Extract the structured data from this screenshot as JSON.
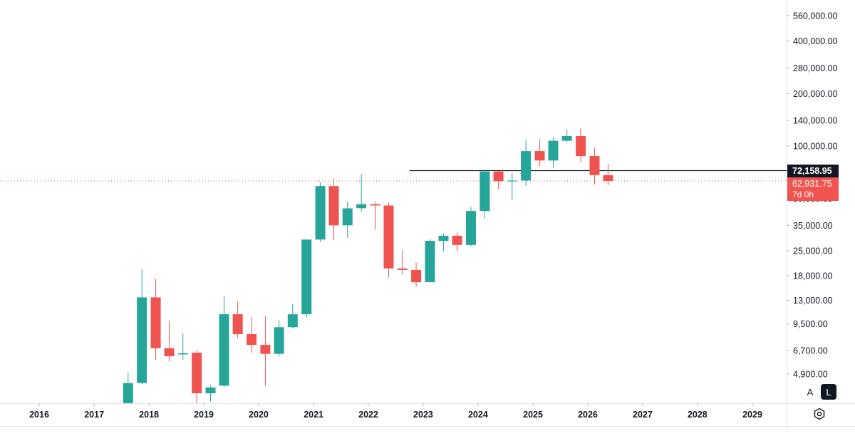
{
  "chart_data": {
    "type": "candlestick",
    "interval": "1 quarter",
    "y_scale": "log",
    "ylim": [
      4400,
      600000
    ],
    "xlim": [
      "2015-05-01",
      "2030-02-01"
    ],
    "colors": {
      "up": "#26a69a",
      "down": "#ef5350",
      "hline": "#131722",
      "axis_text": "#131722"
    },
    "y_ticks": [
      {
        "value": 560000,
        "label": "560,000.00"
      },
      {
        "value": 400000,
        "label": "400,000.00"
      },
      {
        "value": 280000,
        "label": "280,000.00"
      },
      {
        "value": 200000,
        "label": "200,000.00"
      },
      {
        "value": 140000,
        "label": "140,000.00"
      },
      {
        "value": 100000,
        "label": "100,000.00"
      },
      {
        "value": 50000,
        "label": "50,000.00"
      },
      {
        "value": 35000,
        "label": "35,000.00"
      },
      {
        "value": 25000,
        "label": "25,000.00"
      },
      {
        "value": 18000,
        "label": "18,000.00"
      },
      {
        "value": 13000,
        "label": "13,000.00"
      },
      {
        "value": 9500,
        "label": "9,500.00"
      },
      {
        "value": 6700,
        "label": "6,700.00"
      },
      {
        "value": 4900,
        "label": "4,900.00"
      }
    ],
    "x_ticks": [
      {
        "date": "2016-01-01",
        "label": "2016"
      },
      {
        "date": "2017-01-01",
        "label": "2017"
      },
      {
        "date": "2018-01-01",
        "label": "2018"
      },
      {
        "date": "2019-01-01",
        "label": "2019"
      },
      {
        "date": "2020-01-01",
        "label": "2020"
      },
      {
        "date": "2021-01-01",
        "label": "2021"
      },
      {
        "date": "2022-01-01",
        "label": "2022"
      },
      {
        "date": "2023-01-01",
        "label": "2023"
      },
      {
        "date": "2024-01-01",
        "label": "2024"
      },
      {
        "date": "2025-01-01",
        "label": "2025"
      },
      {
        "date": "2026-01-01",
        "label": "2026"
      },
      {
        "date": "2027-01-01",
        "label": "2027"
      },
      {
        "date": "2028-01-01",
        "label": "2028"
      },
      {
        "date": "2029-01-01",
        "label": "2029"
      }
    ],
    "candles": [
      {
        "date": "2017-07-01",
        "open": 2450,
        "high": 5000,
        "low": 1800,
        "close": 4350
      },
      {
        "date": "2017-10-01",
        "open": 4350,
        "high": 19700,
        "low": 4300,
        "close": 13500
      },
      {
        "date": "2018-01-01",
        "open": 13500,
        "high": 17200,
        "low": 5900,
        "close": 6900
      },
      {
        "date": "2018-04-01",
        "open": 6900,
        "high": 9900,
        "low": 5800,
        "close": 6200
      },
      {
        "date": "2018-07-01",
        "open": 6350,
        "high": 8400,
        "low": 5900,
        "close": 6450
      },
      {
        "date": "2018-10-01",
        "open": 6500,
        "high": 6700,
        "low": 3200,
        "close": 3800
      },
      {
        "date": "2019-01-01",
        "open": 3800,
        "high": 4200,
        "low": 3400,
        "close": 4100
      },
      {
        "date": "2019-04-01",
        "open": 4200,
        "high": 13800,
        "low": 4100,
        "close": 10800
      },
      {
        "date": "2019-07-01",
        "open": 10800,
        "high": 12900,
        "low": 7900,
        "close": 8300
      },
      {
        "date": "2019-10-01",
        "open": 8300,
        "high": 10400,
        "low": 6500,
        "close": 7200
      },
      {
        "date": "2020-01-01",
        "open": 7200,
        "high": 10500,
        "low": 4200,
        "close": 6400
      },
      {
        "date": "2020-04-01",
        "open": 6400,
        "high": 10000,
        "low": 6200,
        "close": 9100
      },
      {
        "date": "2020-07-01",
        "open": 9100,
        "high": 12400,
        "low": 9000,
        "close": 10800
      },
      {
        "date": "2020-10-01",
        "open": 10800,
        "high": 29000,
        "low": 10400,
        "close": 29000
      },
      {
        "date": "2021-01-01",
        "open": 29000,
        "high": 61800,
        "low": 28100,
        "close": 58800
      },
      {
        "date": "2021-04-01",
        "open": 58800,
        "high": 64800,
        "low": 28800,
        "close": 35000
      },
      {
        "date": "2021-07-01",
        "open": 35000,
        "high": 48000,
        "low": 29600,
        "close": 43800
      },
      {
        "date": "2021-10-01",
        "open": 43900,
        "high": 69000,
        "low": 42000,
        "close": 46300
      },
      {
        "date": "2022-01-01",
        "open": 46300,
        "high": 48000,
        "low": 33000,
        "close": 45500
      },
      {
        "date": "2022-04-01",
        "open": 45500,
        "high": 47400,
        "low": 17600,
        "close": 19800
      },
      {
        "date": "2022-07-01",
        "open": 19800,
        "high": 25200,
        "low": 18200,
        "close": 19400
      },
      {
        "date": "2022-10-01",
        "open": 19400,
        "high": 21400,
        "low": 15500,
        "close": 16500
      },
      {
        "date": "2023-01-01",
        "open": 16500,
        "high": 29200,
        "low": 16500,
        "close": 28500
      },
      {
        "date": "2023-04-01",
        "open": 28500,
        "high": 31400,
        "low": 24800,
        "close": 30500
      },
      {
        "date": "2023-07-01",
        "open": 30500,
        "high": 31800,
        "low": 24900,
        "close": 27000
      },
      {
        "date": "2023-10-01",
        "open": 27000,
        "high": 44700,
        "low": 26500,
        "close": 42300
      },
      {
        "date": "2024-01-01",
        "open": 42300,
        "high": 73800,
        "low": 38500,
        "close": 71300
      },
      {
        "date": "2024-04-01",
        "open": 71300,
        "high": 72000,
        "low": 56500,
        "close": 62700
      },
      {
        "date": "2024-07-01",
        "open": 62700,
        "high": 70000,
        "low": 49000,
        "close": 63300
      },
      {
        "date": "2024-10-01",
        "open": 63300,
        "high": 108300,
        "low": 58900,
        "close": 93400
      },
      {
        "date": "2025-01-01",
        "open": 93400,
        "high": 109600,
        "low": 76600,
        "close": 82500
      },
      {
        "date": "2025-04-01",
        "open": 82500,
        "high": 111900,
        "low": 74400,
        "close": 107100
      },
      {
        "date": "2025-07-01",
        "open": 107100,
        "high": 124400,
        "low": 105100,
        "close": 114000
      },
      {
        "date": "2025-10-01",
        "open": 114000,
        "high": 126200,
        "low": 80600,
        "close": 87500
      },
      {
        "date": "2026-01-01",
        "open": 87500,
        "high": 97900,
        "low": 60000,
        "close": 68000
      },
      {
        "date": "2026-04-01",
        "open": 68000,
        "high": 79000,
        "low": 59500,
        "close": 62931.75
      }
    ],
    "hline": {
      "value": 72158.95,
      "start_date": "2022-10-01"
    },
    "last_price": {
      "value": 62931.75,
      "label": "62,931.75",
      "countdown": "7d 0h"
    },
    "hline_label": "72,158.95"
  },
  "controls": {
    "auto_label": "A",
    "log_label": "L",
    "settings_icon": "gear-icon"
  }
}
